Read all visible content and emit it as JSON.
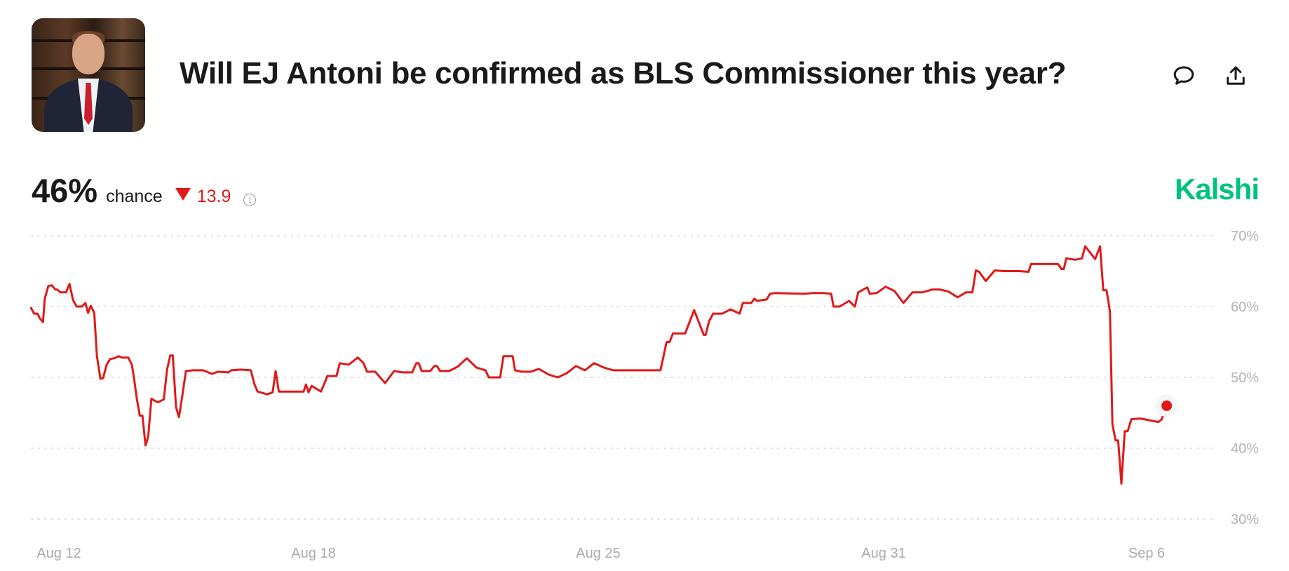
{
  "header": {
    "title": "Will EJ Antoni be confirmed as BLS Commissioner this year?",
    "comment_icon": "speech-bubble-icon",
    "share_icon": "share-upload-icon"
  },
  "summary": {
    "probability": "46%",
    "probability_label": "chance",
    "change_direction": "down",
    "change_value": "13.9",
    "info_icon": "info-circle-icon",
    "brand": "Kalshi"
  },
  "colors": {
    "line": "#e01919",
    "brand": "#00c27c",
    "grid": "#cccccc",
    "text": "#1a1a1a"
  },
  "chart_data": {
    "type": "line",
    "xlabel": "",
    "ylabel": "",
    "ylim": [
      30,
      70
    ],
    "y_ticks": [
      "70%",
      "60%",
      "50%",
      "40%",
      "30%"
    ],
    "y_tick_values": [
      70,
      60,
      50,
      40,
      30
    ],
    "x_ticks": [
      "Aug 12",
      "Aug 18",
      "Aug 25",
      "Aug 31",
      "Sep 6"
    ],
    "grid": "horizontal dotted",
    "legend": "none",
    "unit": "%",
    "current_value": 46,
    "series": [
      {
        "points": [
          [
            "Aug 11 08:00",
            59.9
          ],
          [
            "Aug 11 10:00",
            59.0
          ],
          [
            "Aug 11 12:00",
            59.0
          ],
          [
            "Aug 11 13:00",
            58.4
          ],
          [
            "Aug 11 15:00",
            57.8
          ],
          [
            "Aug 11 16:00",
            61.1
          ],
          [
            "Aug 11 18:00",
            62.9
          ],
          [
            "Aug 11 20:00",
            63.0
          ],
          [
            "Aug 11 22:00",
            62.4
          ],
          [
            "Aug 11 23:00",
            62.4
          ],
          [
            "Aug 12 01:00",
            62.0
          ],
          [
            "Aug 12 04:00",
            62.0
          ],
          [
            "Aug 12 06:00",
            63.2
          ],
          [
            "Aug 12 08:00",
            60.9
          ],
          [
            "Aug 12 10:00",
            60.0
          ],
          [
            "Aug 12 13:00",
            60.0
          ],
          [
            "Aug 12 15:00",
            60.5
          ],
          [
            "Aug 12 16:30",
            59.1
          ],
          [
            "Aug 12 18:00",
            60.1
          ],
          [
            "Aug 12 20:00",
            59.1
          ],
          [
            "Aug 12 21:30",
            53.0
          ],
          [
            "Aug 12 23:30",
            49.8
          ],
          [
            "Aug 13 01:00",
            49.9
          ],
          [
            "Aug 13 03:00",
            51.8
          ],
          [
            "Aug 13 05:00",
            52.6
          ],
          [
            "Aug 13 07:30",
            52.7
          ],
          [
            "Aug 13 09:45",
            53.0
          ],
          [
            "Aug 13 11:30",
            52.8
          ],
          [
            "Aug 13 15:15",
            52.8
          ],
          [
            "Aug 13 17:15",
            51.8
          ],
          [
            "Aug 13 18:30",
            49.9
          ],
          [
            "Aug 13 20:00",
            47.1
          ],
          [
            "Aug 13 21:45",
            44.6
          ],
          [
            "Aug 13 23:15",
            44.6
          ],
          [
            "Aug 14 01:00",
            40.4
          ],
          [
            "Aug 14 02:30",
            41.6
          ],
          [
            "Aug 14 04:20",
            47.0
          ],
          [
            "Aug 14 06:10",
            46.7
          ],
          [
            "Aug 14 08:00",
            46.5
          ],
          [
            "Aug 14 11:20",
            46.9
          ],
          [
            "Aug 14 13:10",
            51.1
          ],
          [
            "Aug 14 15:00",
            53.1
          ],
          [
            "Aug 14 16:25",
            53.1
          ],
          [
            "Aug 14 18:15",
            45.8
          ],
          [
            "Aug 14 19:55",
            44.4
          ],
          [
            "Aug 14 21:45",
            47.3
          ],
          [
            "Aug 14 23:50",
            50.9
          ],
          [
            "Aug 15 04:00",
            51.0
          ],
          [
            "Aug 15 09:35",
            51.0
          ],
          [
            "Aug 15 14:30",
            50.5
          ],
          [
            "Aug 15 18:00",
            50.8
          ],
          [
            "Aug 15 23:50",
            50.7
          ],
          [
            "Aug 16 01:25",
            51.0
          ],
          [
            "Aug 16 06:50",
            51.1
          ],
          [
            "Aug 16 12:35",
            51.0
          ],
          [
            "Aug 16 14:30",
            49.1
          ],
          [
            "Aug 16 16:20",
            48.0
          ],
          [
            "Aug 16 21:55",
            47.6
          ],
          [
            "Aug 17 00:55",
            47.9
          ],
          [
            "Aug 17 02:35",
            50.9
          ],
          [
            "Aug 17 04:25",
            48.0
          ],
          [
            "Aug 17 18:25",
            48.0
          ],
          [
            "Aug 17 19:45",
            49.0
          ],
          [
            "Aug 17 21:10",
            47.9
          ],
          [
            "Aug 17 23:00",
            48.8
          ],
          [
            "Aug 18 04:25",
            48.0
          ],
          [
            "Aug 18 08:15",
            50.2
          ],
          [
            "Aug 18 13:35",
            50.2
          ],
          [
            "Aug 18 15:30",
            52.0
          ],
          [
            "Aug 18 20:50",
            51.8
          ],
          [
            "Aug 19 02:10",
            52.8
          ],
          [
            "Aug 19 05:35",
            52.0
          ],
          [
            "Aug 19 07:35",
            50.8
          ],
          [
            "Aug 19 12:25",
            50.8
          ],
          [
            "Aug 19 18:15",
            49.2
          ],
          [
            "Aug 19 23:35",
            50.9
          ],
          [
            "Aug 20 04:25",
            50.7
          ],
          [
            "Aug 20 10:15",
            50.7
          ],
          [
            "Aug 20 12:40",
            52.0
          ],
          [
            "Aug 20 14:05",
            52.0
          ],
          [
            "Aug 20 15:50",
            50.9
          ],
          [
            "Aug 20 20:55",
            50.9
          ],
          [
            "Aug 20 23:20",
            51.6
          ],
          [
            "Aug 21 00:50",
            51.6
          ],
          [
            "Aug 21 02:45",
            50.9
          ],
          [
            "Aug 21 08:05",
            50.9
          ],
          [
            "Aug 21 13:00",
            51.5
          ],
          [
            "Aug 21 18:30",
            52.7
          ],
          [
            "Aug 22 00:05",
            51.4
          ],
          [
            "Aug 22 05:30",
            51.0
          ],
          [
            "Aug 22 07:25",
            50.0
          ],
          [
            "Aug 22 10:20",
            50.0
          ],
          [
            "Aug 22 14:10",
            50.0
          ],
          [
            "Aug 22 16:05",
            53.0
          ],
          [
            "Aug 22 21:30",
            53.0
          ],
          [
            "Aug 22 22:55",
            51.0
          ],
          [
            "Aug 23 02:50",
            50.8
          ],
          [
            "Aug 23 08:10",
            50.8
          ],
          [
            "Aug 23 13:00",
            51.2
          ],
          [
            "Aug 23 18:50",
            50.4
          ],
          [
            "Aug 24 00:10",
            50.0
          ],
          [
            "Aug 24 05:30",
            50.6
          ],
          [
            "Aug 24 10:50",
            51.6
          ],
          [
            "Aug 24 16:10",
            51.0
          ],
          [
            "Aug 24 21:30",
            52.0
          ],
          [
            "Aug 25 02:50",
            51.4
          ],
          [
            "Aug 25 07:30",
            51.0
          ],
          [
            "Aug 25 23:40",
            51.0
          ],
          [
            "Aug 26 07:25",
            51.0
          ],
          [
            "Aug 26 10:30",
            55.0
          ],
          [
            "Aug 26 12:00",
            55.0
          ],
          [
            "Aug 26 13:40",
            56.2
          ],
          [
            "Aug 26 19:50",
            56.2
          ],
          [
            "Aug 27 00:25",
            59.5
          ],
          [
            "Aug 27 05:15",
            56.0
          ],
          [
            "Aug 27 06:15",
            56.0
          ],
          [
            "Aug 27 07:55",
            57.9
          ],
          [
            "Aug 27 10:00",
            59.0
          ],
          [
            "Aug 27 14:35",
            59.0
          ],
          [
            "Aug 27 18:45",
            59.6
          ],
          [
            "Aug 27 23:20",
            59.0
          ],
          [
            "Aug 28 01:00",
            60.5
          ],
          [
            "Aug 28 05:10",
            60.5
          ],
          [
            "Aug 28 06:50",
            61.1
          ],
          [
            "Aug 28 08:15",
            60.8
          ],
          [
            "Aug 28 13:00",
            61.0
          ],
          [
            "Aug 28 14:40",
            61.8
          ],
          [
            "Aug 28 17:10",
            61.9
          ],
          [
            "Aug 29 08:10",
            61.8
          ],
          [
            "Aug 29 12:20",
            61.9
          ],
          [
            "Aug 29 17:40",
            61.9
          ],
          [
            "Aug 29 21:30",
            61.8
          ],
          [
            "Aug 29 22:45",
            60.0
          ],
          [
            "Aug 30 01:50",
            60.0
          ],
          [
            "Aug 30 06:35",
            60.8
          ],
          [
            "Aug 30 09:30",
            60.0
          ],
          [
            "Aug 30 11:10",
            62.0
          ],
          [
            "Aug 30 15:45",
            62.7
          ],
          [
            "Aug 30 17:00",
            61.8
          ],
          [
            "Aug 30 20:30",
            61.9
          ],
          [
            "Aug 31 01:05",
            62.8
          ],
          [
            "Aug 31 05:55",
            62.2
          ],
          [
            "Aug 31 10:50",
            60.5
          ],
          [
            "Aug 31 15:45",
            62.0
          ],
          [
            "Aug 31 21:10",
            62.0
          ],
          [
            "Sep 1 02:35",
            62.4
          ],
          [
            "Sep 1 07:05",
            62.4
          ],
          [
            "Sep 1 11:35",
            62.1
          ],
          [
            "Sep 1 16:30",
            61.3
          ],
          [
            "Sep 1 21:00",
            62.0
          ],
          [
            "Sep 2 00:35",
            62.0
          ],
          [
            "Sep 2 02:30",
            65.1
          ],
          [
            "Sep 2 04:15",
            64.9
          ],
          [
            "Sep 2 07:55",
            63.6
          ],
          [
            "Sep 2 12:50",
            65.1
          ],
          [
            "Sep 2 17:45",
            65.0
          ],
          [
            "Sep 3 02:20",
            65.0
          ],
          [
            "Sep 3 07:20",
            64.9
          ],
          [
            "Sep 3 08:40",
            66.0
          ],
          [
            "Sep 3 23:30",
            66.0
          ],
          [
            "Sep 4 01:20",
            65.3
          ],
          [
            "Sep 4 02:40",
            65.3
          ],
          [
            "Sep 4 04:00",
            66.8
          ],
          [
            "Sep 4 08:55",
            66.6
          ],
          [
            "Sep 4 12:35",
            66.8
          ],
          [
            "Sep 4 14:20",
            68.5
          ],
          [
            "Sep 4 19:50",
            66.7
          ],
          [
            "Sep 4 22:30",
            68.5
          ],
          [
            "Sep 5 00:15",
            62.3
          ],
          [
            "Sep 5 02:05",
            62.3
          ],
          [
            "Sep 5 03:55",
            59.3
          ],
          [
            "Sep 5 05:15",
            43.4
          ],
          [
            "Sep 5 07:00",
            41.1
          ],
          [
            "Sep 5 08:25",
            41.1
          ],
          [
            "Sep 5 10:10",
            35.0
          ],
          [
            "Sep 5 12:00",
            42.4
          ],
          [
            "Sep 5 13:35",
            42.4
          ],
          [
            "Sep 5 15:40",
            44.1
          ],
          [
            "Sep 5 20:30",
            44.2
          ],
          [
            "Sep 6 06:30",
            43.7
          ],
          [
            "Sep 6 08:15",
            44.1
          ],
          [
            "Sep 6 11:00",
            46.0
          ]
        ]
      }
    ]
  }
}
